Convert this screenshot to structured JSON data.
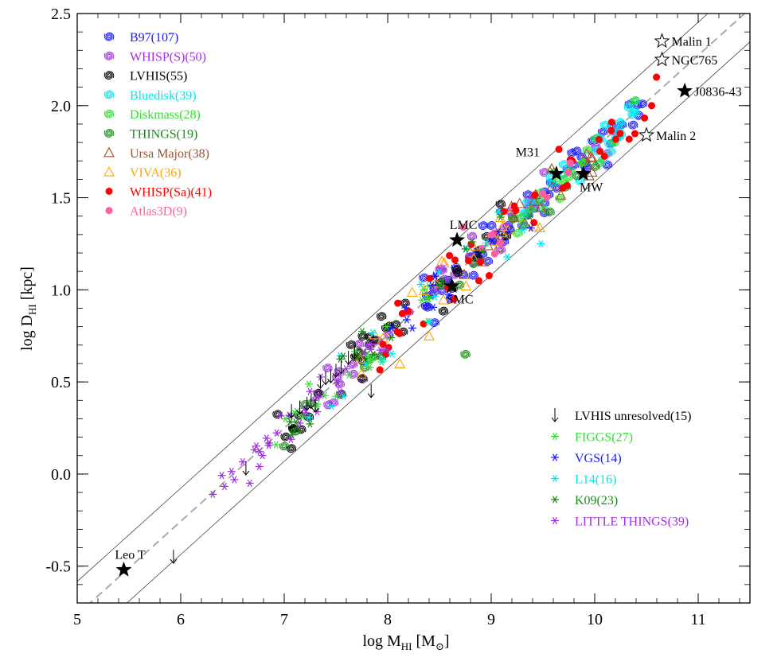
{
  "chart_data": {
    "type": "scatter",
    "title": "",
    "xlabel": {
      "base": "log M",
      "sub": "HI",
      "unit_pre": " [M",
      "unit_sym": "⊙",
      "unit_post": "]"
    },
    "ylabel": {
      "base": "log D",
      "sub": "HI",
      "unit": " [kpc]"
    },
    "xlim": [
      5,
      11.5
    ],
    "ylim": [
      -0.7,
      2.5
    ],
    "xticks": [
      5,
      6,
      7,
      8,
      9,
      10,
      11
    ],
    "xtick_labels": [
      "5",
      "6",
      "7",
      "8",
      "9",
      "10",
      "11"
    ],
    "yticks": [
      -0.5,
      0.0,
      0.5,
      1.0,
      1.5,
      2.0,
      2.5
    ],
    "ytick_labels": [
      "-0.5",
      "0.0",
      "0.5",
      "1.0",
      "1.5",
      "2.0",
      "2.5"
    ],
    "relation": {
      "slope": 0.506,
      "intercept": -3.293,
      "scatter_band": 0.18
    },
    "legend_top_left": [
      {
        "label": "B97(107)",
        "color": "#1a1aff",
        "marker": "spiral"
      },
      {
        "label": "WHISP(S)(50)",
        "color": "#a030e0",
        "marker": "spiral"
      },
      {
        "label": "LVHIS(55)",
        "color": "#000000",
        "marker": "spiral"
      },
      {
        "label": "Bluedisk(39)",
        "color": "#00e5ee",
        "marker": "spiral"
      },
      {
        "label": "Diskmass(28)",
        "color": "#30e030",
        "marker": "spiral"
      },
      {
        "label": "THINGS(19)",
        "color": "#1a8a1a",
        "marker": "spiral"
      },
      {
        "label": "Ursa Major(38)",
        "color": "#a0522d",
        "marker": "triangle"
      },
      {
        "label": "VIVA(36)",
        "color": "#ffa500",
        "marker": "triangle"
      },
      {
        "label": "WHISP(Sa)(41)",
        "color": "#ff0000",
        "marker": "dot"
      },
      {
        "label": "Atlas3D(9)",
        "color": "#ff5fa0",
        "marker": "dot"
      }
    ],
    "legend_bottom_right": [
      {
        "label": "LVHIS unresolved(15)",
        "color": "#000000",
        "marker": "arrow"
      },
      {
        "label": "FIGGS(27)",
        "color": "#30e030",
        "marker": "asterisk"
      },
      {
        "label": "VGS(14)",
        "color": "#1a1aff",
        "marker": "asterisk"
      },
      {
        "label": "L14(16)",
        "color": "#00e5ee",
        "marker": "asterisk"
      },
      {
        "label": "K09(23)",
        "color": "#1a8a1a",
        "marker": "asterisk"
      },
      {
        "label": "LITTLE THINGS(39)",
        "color": "#a030e0",
        "marker": "asterisk"
      }
    ],
    "named_galaxies": [
      {
        "name": "Malin 1",
        "x": 10.65,
        "y": 2.35,
        "filled": false,
        "label_pos": "right"
      },
      {
        "name": "NGC765",
        "x": 10.65,
        "y": 2.25,
        "filled": false,
        "label_pos": "right"
      },
      {
        "name": "J0836-43",
        "x": 10.87,
        "y": 2.08,
        "filled": true,
        "label_pos": "right"
      },
      {
        "name": "Malin 2",
        "x": 10.5,
        "y": 1.84,
        "filled": false,
        "label_pos": "right"
      },
      {
        "name": "M31",
        "x": 9.63,
        "y": 1.63,
        "filled": true,
        "label_pos": "upleft"
      },
      {
        "name": "MW",
        "x": 9.89,
        "y": 1.63,
        "filled": true,
        "label_pos": "below"
      },
      {
        "name": "LMC",
        "x": 8.67,
        "y": 1.27,
        "filled": true,
        "label_pos": "above"
      },
      {
        "name": "SMC",
        "x": 8.62,
        "y": 1.02,
        "filled": true,
        "label_pos": "below"
      },
      {
        "name": "Leo T",
        "x": 5.45,
        "y": -0.52,
        "filled": true,
        "label_pos": "above"
      }
    ],
    "unresolved_arrows": [
      {
        "x": 5.93,
        "y": -0.45
      },
      {
        "x": 6.63,
        "y": 0.03
      },
      {
        "x": 7.84,
        "y": 0.45
      },
      {
        "x": 7.15,
        "y": 0.36
      },
      {
        "x": 7.22,
        "y": 0.38
      },
      {
        "x": 7.3,
        "y": 0.37
      },
      {
        "x": 7.07,
        "y": 0.34
      },
      {
        "x": 7.26,
        "y": 0.39
      },
      {
        "x": 7.45,
        "y": 0.53
      },
      {
        "x": 7.5,
        "y": 0.56
      },
      {
        "x": 7.55,
        "y": 0.58
      },
      {
        "x": 7.62,
        "y": 0.63
      },
      {
        "x": 7.68,
        "y": 0.66
      },
      {
        "x": 7.35,
        "y": 0.5
      },
      {
        "x": 7.4,
        "y": 0.52
      }
    ],
    "samples": [
      {
        "name": "B97",
        "marker": "spiral",
        "color": "#1a1aff",
        "n": 60,
        "seed": 11,
        "xmin": 8.3,
        "xmax": 10.5,
        "scatter": 0.06
      },
      {
        "name": "WHISP(S)",
        "marker": "spiral",
        "color": "#a030e0",
        "n": 35,
        "seed": 23,
        "xmin": 7.3,
        "xmax": 10.2,
        "scatter": 0.07
      },
      {
        "name": "LVHIS",
        "marker": "spiral",
        "color": "#000000",
        "n": 35,
        "seed": 37,
        "xmin": 6.9,
        "xmax": 9.5,
        "scatter": 0.07
      },
      {
        "name": "Bluedisk",
        "marker": "spiral",
        "color": "#00e5ee",
        "n": 25,
        "seed": 41,
        "xmin": 9.3,
        "xmax": 10.4,
        "scatter": 0.05
      },
      {
        "name": "Diskmass",
        "marker": "spiral",
        "color": "#30e030",
        "n": 20,
        "seed": 53,
        "xmin": 9.2,
        "xmax": 10.4,
        "scatter": 0.06
      },
      {
        "name": "THINGS",
        "marker": "spiral",
        "color": "#1a8a1a",
        "n": 15,
        "seed": 67,
        "xmin": 7.0,
        "xmax": 10.1,
        "scatter": 0.07
      },
      {
        "name": "Ursa Major",
        "marker": "triangle",
        "color": "#a0522d",
        "n": 22,
        "seed": 71,
        "xmin": 8.6,
        "xmax": 10.0,
        "scatter": 0.06
      },
      {
        "name": "VIVA",
        "marker": "triangle",
        "color": "#ffa500",
        "n": 22,
        "seed": 83,
        "xmin": 7.7,
        "xmax": 9.7,
        "scatter": 0.08
      },
      {
        "name": "WHISP(Sa)",
        "marker": "dot",
        "color": "#ff0000",
        "n": 40,
        "seed": 97,
        "xmin": 7.9,
        "xmax": 10.6,
        "scatter": 0.07
      },
      {
        "name": "Atlas3D",
        "marker": "dot",
        "color": "#ff5fa0",
        "n": 9,
        "seed": 101,
        "xmin": 8.7,
        "xmax": 9.9,
        "scatter": 0.05
      },
      {
        "name": "FIGGS",
        "marker": "asterisk",
        "color": "#30e030",
        "n": 25,
        "seed": 113,
        "xmin": 6.9,
        "xmax": 8.4,
        "scatter": 0.05
      },
      {
        "name": "VGS",
        "marker": "asterisk",
        "color": "#1a1aff",
        "n": 14,
        "seed": 127,
        "xmin": 8.0,
        "xmax": 9.5,
        "scatter": 0.06
      },
      {
        "name": "L14",
        "marker": "asterisk",
        "color": "#00e5ee",
        "n": 16,
        "seed": 131,
        "xmin": 7.1,
        "xmax": 9.5,
        "scatter": 0.08
      },
      {
        "name": "K09",
        "marker": "asterisk",
        "color": "#1a8a1a",
        "n": 22,
        "seed": 139,
        "xmin": 7.0,
        "xmax": 9.6,
        "scatter": 0.06
      },
      {
        "name": "LITTLE THINGS",
        "marker": "asterisk",
        "color": "#a030e0",
        "n": 35,
        "seed": 149,
        "xmin": 6.3,
        "xmax": 8.1,
        "scatter": 0.05
      }
    ],
    "outliers": [
      {
        "x": 8.75,
        "y": 0.65,
        "marker": "spiral",
        "color": "#1a8a1a"
      },
      {
        "x": 9.48,
        "y": 1.25,
        "marker": "asterisk",
        "color": "#00e5ee"
      },
      {
        "x": 8.4,
        "y": 0.75,
        "marker": "triangle",
        "color": "#ffa500"
      },
      {
        "x": 8.88,
        "y": 1.05,
        "marker": "dot",
        "color": "#ff0000"
      },
      {
        "x": 6.31,
        "y": -0.11,
        "marker": "asterisk",
        "color": "#a030e0"
      },
      {
        "x": 8.73,
        "y": 1.34,
        "marker": "dot",
        "color": "#ff5fa0"
      },
      {
        "x": 7.95,
        "y": 0.62,
        "marker": "asterisk",
        "color": "#00e5ee"
      },
      {
        "x": 10.55,
        "y": 2.0,
        "marker": "dot",
        "color": "#ff0000"
      }
    ]
  }
}
